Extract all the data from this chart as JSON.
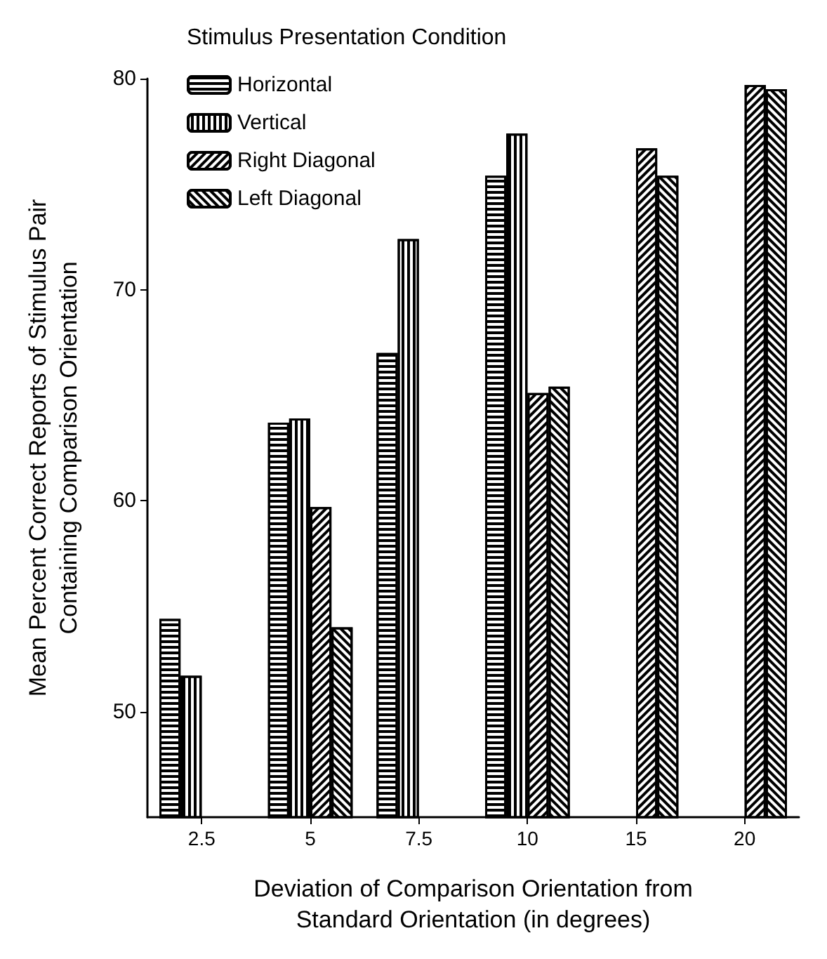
{
  "chart_data": {
    "type": "bar",
    "legend_title": "Stimulus Presentation Condition",
    "ylabel": "Mean Percent Correct Reports of Stimulus Pair\nContaining Comparison Orientation",
    "xlabel": "Deviation of Comparison Orientation from\nStandard Orientation (in degrees)",
    "categories": [
      "2.5",
      "5",
      "7.5",
      "10",
      "15",
      "20"
    ],
    "series": [
      {
        "name": "Horizontal",
        "color": "#ffffff",
        "values": [
          54.4,
          63.7,
          67.0,
          75.4,
          null,
          null
        ]
      },
      {
        "name": "Vertical",
        "color": "#ffffff",
        "values": [
          51.7,
          63.9,
          72.4,
          77.4,
          null,
          null
        ]
      },
      {
        "name": "Right Diagonal",
        "color": "#ffffff",
        "values": [
          null,
          59.7,
          null,
          65.1,
          76.7,
          79.7
        ]
      },
      {
        "name": "Left Diagonal",
        "color": "#ffffff",
        "values": [
          null,
          54.0,
          null,
          65.4,
          75.4,
          79.5
        ]
      }
    ],
    "ylim": [
      45,
      80
    ],
    "yticks": [
      50,
      60,
      70,
      80
    ],
    "grid": false,
    "legend": "top left"
  }
}
